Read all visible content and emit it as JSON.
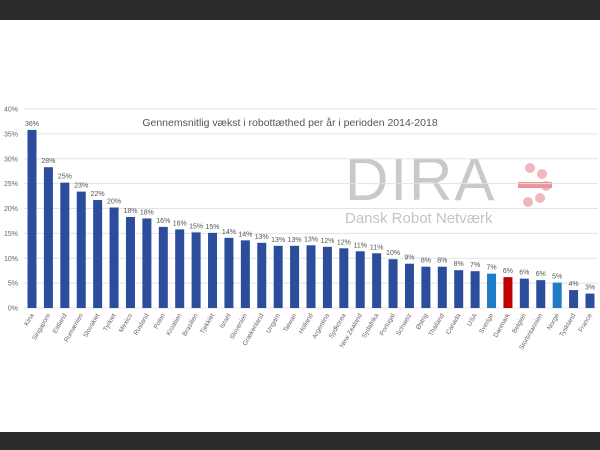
{
  "chart_data": {
    "type": "bar",
    "title": "Gennemsnitlig vækst i robottæthed per år i perioden 2014-2018",
    "xlabel": "",
    "ylabel": "",
    "ylim": [
      0,
      40
    ],
    "yticks": [
      "0%",
      "5%",
      "10%",
      "15%",
      "20%",
      "25%",
      "30%",
      "35%",
      "40%"
    ],
    "grid": true,
    "categories": [
      "Kina",
      "Singapore",
      "Estland",
      "Rumænien",
      "Slovakiet",
      "Tyrkiet",
      "Mexico",
      "Rusland",
      "Polen",
      "Kroatien",
      "Brasilien",
      "Tjekkiet",
      "Israel",
      "Slovenien",
      "Grækenland",
      "Ungarn",
      "Taiwan",
      "Holland",
      "Argentina",
      "Sydkorea",
      "New Zealand",
      "Sydafrika",
      "Portugal",
      "Schweiz",
      "Østrig",
      "Thailand",
      "Canada",
      "USA",
      "Sverige",
      "Danmark",
      "Belgien",
      "Storbritannien",
      "Norge",
      "Tyskland",
      "France"
    ],
    "values": [
      35.8,
      28.3,
      25.2,
      23.4,
      21.7,
      20.2,
      18.3,
      18.0,
      16.3,
      15.8,
      15.2,
      15.1,
      14.1,
      13.6,
      13.1,
      12.5,
      12.5,
      12.6,
      12.3,
      12.0,
      11.4,
      11.0,
      9.8,
      8.9,
      8.3,
      8.3,
      7.6,
      7.4,
      6.9,
      6.2,
      5.9,
      5.6,
      5.1,
      3.6,
      2.9
    ],
    "data_labels": [
      "36%",
      "28%",
      "25%",
      "23%",
      "22%",
      "20%",
      "18%",
      "18%",
      "16%",
      "16%",
      "15%",
      "15%",
      "14%",
      "14%",
      "13%",
      "13%",
      "13%",
      "13%",
      "12%",
      "12%",
      "11%",
      "11%",
      "10%",
      "9%",
      "8%",
      "8%",
      "8%",
      "7%",
      "7%",
      "6%",
      "6%",
      "6%",
      "5%",
      "4%",
      "3%"
    ],
    "colors": {
      "default": "#2c4d9c",
      "nordic": "#1f7bc4",
      "highlight": "#c00000"
    },
    "bar_color_keys": [
      "default",
      "default",
      "default",
      "default",
      "default",
      "default",
      "default",
      "default",
      "default",
      "default",
      "default",
      "default",
      "default",
      "default",
      "default",
      "default",
      "default",
      "default",
      "default",
      "default",
      "default",
      "default",
      "default",
      "default",
      "default",
      "default",
      "default",
      "default",
      "nordic",
      "highlight",
      "default",
      "default",
      "nordic",
      "default",
      "default"
    ]
  },
  "watermark": {
    "logo": "DIRA",
    "subtitle": "Dansk Robot Netværk"
  }
}
